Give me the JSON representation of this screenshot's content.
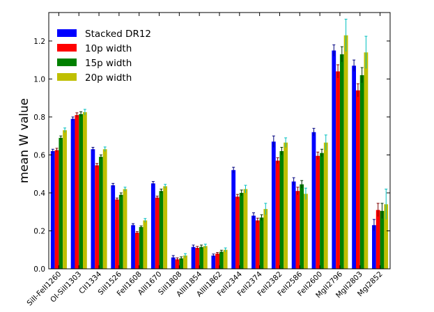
{
  "chart_data": {
    "type": "bar",
    "title": "",
    "xlabel": "",
    "ylabel": "mean W value",
    "ylim": [
      0.0,
      1.35
    ],
    "yticks": [
      "0.0",
      "0.2",
      "0.4",
      "0.6",
      "0.8",
      "1.0",
      "1.2"
    ],
    "grid": false,
    "legend_position": "top-left",
    "categories": [
      "SiII-FeII1260",
      "OI-SiII1303",
      "CII1334",
      "SiII1526",
      "FeII1608",
      "AlII1670",
      "SiII1808",
      "AlIII1854",
      "AlIII1862",
      "FeII2344",
      "FeII2374",
      "FeII2382",
      "FeII2586",
      "FeII2600",
      "MgII2796",
      "MgII2803",
      "MgI2852"
    ],
    "series": [
      {
        "name": "Stacked DR12",
        "color": "#0000ff",
        "values": [
          0.62,
          0.79,
          0.63,
          0.44,
          0.23,
          0.45,
          0.06,
          0.115,
          0.07,
          0.52,
          0.28,
          0.67,
          0.46,
          0.72,
          1.15,
          1.07,
          0.23
        ],
        "errors": [
          0.01,
          0.01,
          0.01,
          0.01,
          0.008,
          0.01,
          0.01,
          0.01,
          0.008,
          0.015,
          0.015,
          0.03,
          0.02,
          0.02,
          0.03,
          0.03,
          0.03
        ]
      },
      {
        "name": "10p width",
        "color": "#ff0000",
        "values": [
          0.625,
          0.81,
          0.545,
          0.365,
          0.19,
          0.375,
          0.05,
          0.11,
          0.08,
          0.38,
          0.255,
          0.57,
          0.41,
          0.595,
          1.04,
          0.94,
          0.31
        ],
        "errors": [
          0.01,
          0.012,
          0.01,
          0.008,
          0.006,
          0.008,
          0.008,
          0.008,
          0.006,
          0.012,
          0.012,
          0.015,
          0.02,
          0.02,
          0.035,
          0.035,
          0.035
        ]
      },
      {
        "name": "15p width",
        "color": "#008000",
        "values": [
          0.69,
          0.815,
          0.59,
          0.39,
          0.22,
          0.41,
          0.055,
          0.115,
          0.09,
          0.4,
          0.27,
          0.62,
          0.445,
          0.61,
          1.13,
          1.02,
          0.305
        ],
        "errors": [
          0.01,
          0.012,
          0.01,
          0.01,
          0.006,
          0.01,
          0.008,
          0.01,
          0.008,
          0.015,
          0.015,
          0.02,
          0.02,
          0.02,
          0.04,
          0.04,
          0.04
        ]
      },
      {
        "name": "20p width",
        "color": "#bfbf00",
        "values": [
          0.73,
          0.825,
          0.63,
          0.42,
          0.255,
          0.435,
          0.07,
          0.12,
          0.1,
          0.42,
          0.315,
          0.665,
          0.395,
          0.665,
          1.23,
          1.14,
          0.34
        ],
        "errors": [
          0.012,
          0.015,
          0.012,
          0.01,
          0.01,
          0.01,
          0.01,
          0.01,
          0.01,
          0.02,
          0.03,
          0.025,
          0.03,
          0.04,
          0.085,
          0.085,
          0.08
        ]
      }
    ]
  }
}
